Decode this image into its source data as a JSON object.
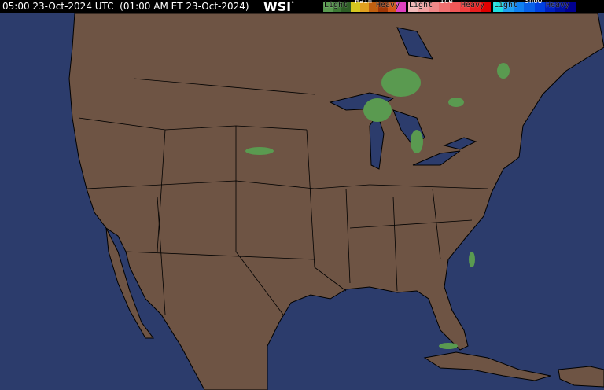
{
  "header": {
    "timestamp": "05:00 23-Oct-2024 UTC  (01:00 AM ET 23-Oct-2024)",
    "logo": "WSI"
  },
  "legend": [
    {
      "title": "Rain",
      "light": "Light",
      "heavy": "Heavy",
      "colors": [
        "#5a9a50",
        "#3e7a36",
        "#2e5e26",
        "#d6c820",
        "#e0a020",
        "#c06010",
        "#a03808",
        "#d05818",
        "#e040c0"
      ]
    },
    {
      "title": "Ice",
      "light": "Light",
      "heavy": "Heavy",
      "colors": [
        "#f0b8b8",
        "#f0a0a0",
        "#f08888",
        "#f07070",
        "#f05858",
        "#f04040",
        "#e82020",
        "#e00000"
      ]
    },
    {
      "title": "Snow",
      "light": "Light",
      "heavy": "Heavy",
      "colors": [
        "#20e0e0",
        "#20a0f0",
        "#1080f0",
        "#0860e8",
        "#0040e0",
        "#0020c0",
        "#0010a0",
        "#000090"
      ]
    }
  ],
  "colors": {
    "ocean": "#2c3c6c",
    "land": "#6e5444",
    "border": "#000000",
    "precip_light_rain": "#5a9a50"
  }
}
